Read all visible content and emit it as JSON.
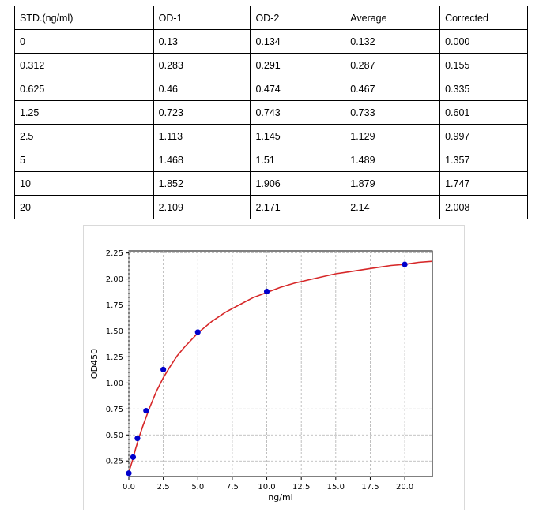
{
  "table": {
    "headers": [
      "STD.(ng/ml)",
      "OD-1",
      "OD-2",
      "Average",
      "Corrected"
    ],
    "rows": [
      [
        "0",
        "0.13",
        "0.134",
        "0.132",
        "0.000"
      ],
      [
        "0.312",
        "0.283",
        "0.291",
        "0.287",
        "0.155"
      ],
      [
        "0.625",
        "0.46",
        "0.474",
        "0.467",
        "0.335"
      ],
      [
        "1.25",
        "0.723",
        "0.743",
        "0.733",
        "0.601"
      ],
      [
        "2.5",
        "1.113",
        "1.145",
        "1.129",
        "0.997"
      ],
      [
        "5",
        "1.468",
        "1.51",
        "1.489",
        "1.357"
      ],
      [
        "10",
        "1.852",
        "1.906",
        "1.879",
        "1.747"
      ],
      [
        "20",
        "2.109",
        "2.171",
        "2.14",
        "2.008"
      ]
    ]
  },
  "chart_data": {
    "type": "scatter",
    "xlabel": "ng/ml",
    "ylabel": "OD450",
    "xlim": [
      0,
      22
    ],
    "ylim": [
      0.1,
      2.27
    ],
    "xticks": [
      "0.0",
      "2.5",
      "5.0",
      "7.5",
      "10.0",
      "12.5",
      "15.0",
      "17.5",
      "20.0"
    ],
    "yticks": [
      "0.25",
      "0.50",
      "0.75",
      "1.00",
      "1.25",
      "1.50",
      "1.75",
      "2.00",
      "2.25"
    ],
    "grid": true,
    "points": {
      "x": [
        0,
        0.312,
        0.625,
        1.25,
        2.5,
        5,
        10,
        20
      ],
      "y": [
        0.132,
        0.287,
        0.467,
        0.733,
        1.129,
        1.489,
        1.879,
        2.14
      ],
      "color": "#0000cc"
    },
    "fit_curve": {
      "color": "#d62728",
      "x": [
        0,
        0.25,
        0.5,
        0.75,
        1,
        1.5,
        2,
        2.5,
        3,
        3.5,
        4,
        5,
        6,
        7,
        8,
        9,
        10,
        11,
        12,
        13,
        14,
        15,
        16,
        17,
        18,
        19,
        20,
        21,
        22
      ],
      "y": [
        0.14,
        0.25,
        0.37,
        0.48,
        0.58,
        0.76,
        0.92,
        1.05,
        1.16,
        1.26,
        1.34,
        1.48,
        1.59,
        1.68,
        1.75,
        1.82,
        1.87,
        1.92,
        1.96,
        1.99,
        2.02,
        2.05,
        2.07,
        2.09,
        2.11,
        2.13,
        2.14,
        2.16,
        2.17
      ]
    }
  }
}
